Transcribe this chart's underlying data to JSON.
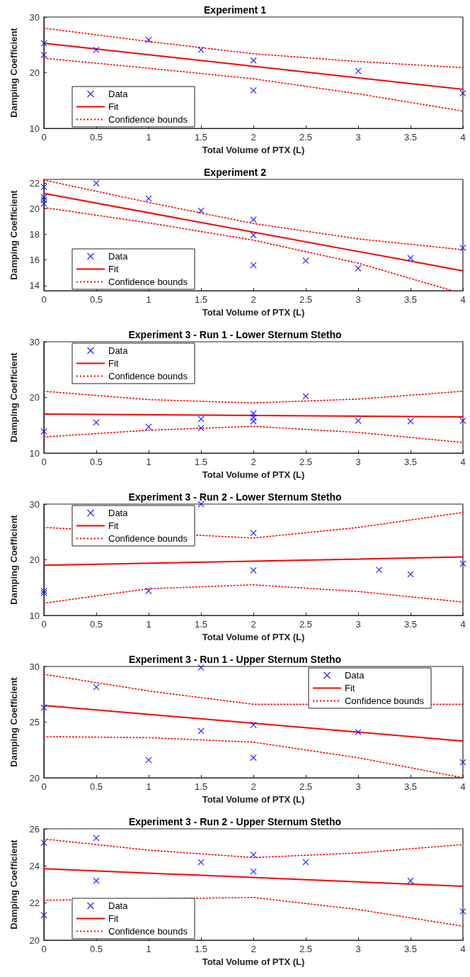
{
  "chart_data": [
    {
      "type": "scatter",
      "title": "Experiment 1",
      "xlabel": "Total Volume of PTX (L)",
      "ylabel": "Damping Coefficient",
      "xlim": [
        0,
        4
      ],
      "xticks": [
        0,
        0.5,
        1,
        1.5,
        2,
        2.5,
        3,
        3.5,
        4
      ],
      "ylim": [
        10,
        30
      ],
      "yticks": [
        10,
        20,
        30
      ],
      "legend": "bottom left",
      "series": [
        {
          "name": "Data",
          "color": "#0000ff",
          "marker": "cross",
          "x": [
            0,
            0,
            0.5,
            1,
            1.5,
            2,
            2,
            3,
            4
          ],
          "values": [
            25.3,
            23.2,
            24.1,
            25.9,
            24.1,
            22.2,
            16.8,
            20.3,
            16.3
          ]
        },
        {
          "name": "Fit",
          "type": "line",
          "color": "#ff0000",
          "marker": "none",
          "line_style": "solid",
          "x": [
            0,
            4
          ],
          "values": [
            25.3,
            17.0
          ]
        },
        {
          "name": "Confidence bounds",
          "type": "line",
          "color": "#ff0000",
          "marker": "none",
          "line_style": "dotted",
          "x": [
            0,
            1,
            2,
            3,
            4
          ],
          "values": [
            28.0,
            25.6,
            23.4,
            22.0,
            20.9
          ]
        },
        {
          "type": "line",
          "color": "#ff0000",
          "marker": "none",
          "line_style": "dotted",
          "x": [
            0,
            1,
            2,
            3,
            4
          ],
          "values": [
            22.6,
            20.8,
            18.9,
            16.2,
            13.1
          ]
        }
      ]
    },
    {
      "type": "scatter",
      "title": "Experiment 2",
      "xlabel": "Total Volume of PTX (L)",
      "ylabel": "Damping Coefficient",
      "xlim": [
        0,
        4
      ],
      "xticks": [
        0,
        0.5,
        1,
        1.5,
        2,
        2.5,
        3,
        3.5,
        4
      ],
      "ylim": [
        13.6,
        22.3
      ],
      "yticks": [
        14,
        16,
        18,
        20,
        22
      ],
      "legend": "bottom left",
      "series": [
        {
          "name": "Data",
          "color": "#0000ff",
          "marker": "cross",
          "x": [
            0,
            0,
            0,
            0,
            0.5,
            1,
            1.5,
            2,
            2,
            2,
            2.5,
            3,
            3.5,
            4
          ],
          "values": [
            21.7,
            20.9,
            20.7,
            20.4,
            22.0,
            20.8,
            19.85,
            19.15,
            17.95,
            15.6,
            15.95,
            15.35,
            16.15,
            16.95
          ]
        },
        {
          "name": "Fit",
          "type": "line",
          "color": "#ff0000",
          "marker": "none",
          "line_style": "solid",
          "x": [
            0,
            4
          ],
          "values": [
            21.2,
            15.15
          ]
        },
        {
          "name": "Confidence bounds",
          "type": "line",
          "color": "#ff0000",
          "marker": "none",
          "line_style": "dotted",
          "x": [
            0,
            1,
            2,
            3,
            4
          ],
          "values": [
            22.25,
            20.5,
            18.85,
            17.65,
            16.8
          ]
        },
        {
          "type": "line",
          "color": "#ff0000",
          "marker": "none",
          "line_style": "dotted",
          "x": [
            0,
            1,
            2,
            3,
            3.9
          ],
          "values": [
            20.1,
            18.9,
            17.55,
            15.75,
            13.6
          ]
        }
      ]
    },
    {
      "type": "scatter",
      "title": "Experiment 3 - Run 1 - Lower Sternum Stetho",
      "xlabel": "Total Volume of PTX (L)",
      "ylabel": "Damping Coefficient",
      "xlim": [
        0,
        4
      ],
      "xticks": [
        0,
        0.5,
        1,
        1.5,
        2,
        2.5,
        3,
        3.5,
        4
      ],
      "ylim": [
        10,
        30
      ],
      "yticks": [
        10,
        20,
        30
      ],
      "legend": "top left",
      "series": [
        {
          "name": "Data",
          "color": "#0000ff",
          "marker": "cross",
          "x": [
            0,
            0.5,
            1,
            1.5,
            1.5,
            2,
            2,
            2,
            2.5,
            3,
            3.5,
            4
          ],
          "values": [
            13.9,
            15.5,
            14.7,
            16.1,
            14.5,
            17.1,
            16.4,
            15.7,
            20.2,
            15.8,
            15.7,
            15.8
          ]
        },
        {
          "name": "Fit",
          "type": "line",
          "color": "#ff0000",
          "marker": "none",
          "line_style": "solid",
          "x": [
            0,
            4
          ],
          "values": [
            17.0,
            16.5
          ]
        },
        {
          "name": "Confidence bounds",
          "type": "line",
          "color": "#ff0000",
          "marker": "none",
          "line_style": "dotted",
          "x": [
            0,
            1,
            2,
            3,
            4
          ],
          "values": [
            21.1,
            19.6,
            19.0,
            19.7,
            21.1
          ]
        },
        {
          "type": "line",
          "color": "#ff0000",
          "marker": "none",
          "line_style": "dotted",
          "x": [
            0,
            1,
            2,
            3,
            4
          ],
          "values": [
            12.9,
            14.1,
            14.8,
            13.7,
            11.9
          ]
        }
      ]
    },
    {
      "type": "scatter",
      "title": "Experiment 3 - Run 2 - Lower Sternum Stetho",
      "xlabel": "Total Volume of PTX (L)",
      "ylabel": "Damping Coefficient",
      "xlim": [
        0,
        4
      ],
      "xticks": [
        0,
        0.5,
        1,
        1.5,
        2,
        2.5,
        3,
        3.5,
        4
      ],
      "ylim": [
        10,
        30
      ],
      "yticks": [
        10,
        20,
        30
      ],
      "legend": "top left",
      "series": [
        {
          "name": "Data",
          "color": "#0000ff",
          "marker": "cross",
          "x": [
            0,
            0,
            1,
            1.5,
            2,
            2,
            3.2,
            3.5,
            4
          ],
          "values": [
            14.4,
            14.0,
            14.4,
            30.0,
            24.8,
            18.1,
            18.2,
            17.4,
            19.3
          ]
        },
        {
          "name": "Fit",
          "type": "line",
          "color": "#ff0000",
          "marker": "none",
          "line_style": "solid",
          "x": [
            0,
            4
          ],
          "values": [
            19.0,
            20.5
          ]
        },
        {
          "name": "Confidence bounds",
          "type": "line",
          "color": "#ff0000",
          "marker": "none",
          "line_style": "dotted",
          "x": [
            0,
            2,
            3,
            4
          ],
          "values": [
            25.8,
            23.9,
            25.8,
            28.5
          ]
        },
        {
          "type": "line",
          "color": "#ff0000",
          "marker": "none",
          "line_style": "dotted",
          "x": [
            0,
            1,
            2,
            3,
            4
          ],
          "values": [
            12.2,
            14.8,
            15.5,
            14.3,
            12.4
          ]
        }
      ]
    },
    {
      "type": "scatter",
      "title": "Experiment 3 - Run 1 - Upper Sternum Stetho",
      "xlabel": "Total Volume of PTX (L)",
      "ylabel": "Damping Coefficient",
      "xlim": [
        0,
        4
      ],
      "xticks": [
        0,
        0.5,
        1,
        1.5,
        2,
        2.5,
        3,
        3.5,
        4
      ],
      "ylim": [
        20,
        30
      ],
      "yticks": [
        20,
        25,
        30
      ],
      "legend": "top right",
      "series": [
        {
          "name": "Data",
          "color": "#0000ff",
          "marker": "cross",
          "x": [
            0,
            0.5,
            1,
            1.5,
            1.5,
            2,
            2,
            3,
            4
          ],
          "values": [
            26.3,
            28.15,
            21.6,
            29.9,
            24.2,
            24.75,
            21.8,
            24.1,
            21.4
          ]
        },
        {
          "name": "Fit",
          "type": "line",
          "color": "#ff0000",
          "marker": "none",
          "line_style": "solid",
          "x": [
            0,
            4
          ],
          "values": [
            26.5,
            23.3
          ]
        },
        {
          "name": "Confidence bounds",
          "type": "line",
          "color": "#ff0000",
          "marker": "none",
          "line_style": "dotted",
          "x": [
            0,
            1,
            2,
            4
          ],
          "values": [
            29.3,
            27.8,
            26.6,
            26.6
          ]
        },
        {
          "type": "line",
          "color": "#ff0000",
          "marker": "none",
          "line_style": "dotted",
          "x": [
            0,
            1,
            2,
            3,
            4
          ],
          "values": [
            23.7,
            23.6,
            23.2,
            21.8,
            20.0
          ]
        }
      ]
    },
    {
      "type": "scatter",
      "title": "Experiment 3 - Run 2 - Upper Sternum Stetho",
      "xlabel": "Total Volume of PTX (L)",
      "ylabel": "Damping Coefficient",
      "xlim": [
        0,
        4
      ],
      "xticks": [
        0,
        0.5,
        1,
        1.5,
        2,
        2.5,
        3,
        3.5,
        4
      ],
      "ylim": [
        20,
        26
      ],
      "yticks": [
        20,
        22,
        24,
        26
      ],
      "legend": "bottom left",
      "series": [
        {
          "name": "Data",
          "color": "#0000ff",
          "marker": "cross",
          "x": [
            0,
            0,
            0.5,
            0.5,
            1.5,
            2,
            2,
            2.5,
            3.5,
            4
          ],
          "values": [
            25.25,
            21.35,
            25.5,
            23.2,
            24.2,
            24.6,
            23.7,
            24.2,
            23.2,
            21.55
          ]
        },
        {
          "name": "Fit",
          "type": "line",
          "color": "#ff0000",
          "marker": "none",
          "line_style": "solid",
          "x": [
            0,
            4
          ],
          "values": [
            23.85,
            22.9
          ]
        },
        {
          "name": "Confidence bounds",
          "type": "line",
          "color": "#ff0000",
          "marker": "none",
          "line_style": "dotted",
          "x": [
            0,
            1,
            2,
            3,
            4
          ],
          "values": [
            25.45,
            24.85,
            24.45,
            24.7,
            25.15
          ]
        },
        {
          "type": "line",
          "color": "#ff0000",
          "marker": "none",
          "line_style": "dotted",
          "x": [
            0,
            2,
            3,
            4
          ],
          "values": [
            22.15,
            22.3,
            21.65,
            20.75
          ]
        }
      ]
    }
  ]
}
